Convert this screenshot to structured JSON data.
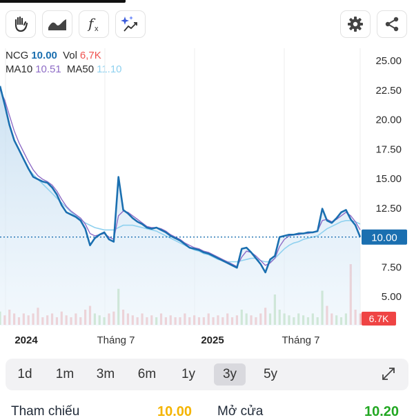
{
  "toolbar": {
    "tools": [
      "hand-draw-icon",
      "chart-style-icon",
      "function-icon",
      "ai-trend-icon"
    ],
    "right_tools": [
      "gear-icon",
      "share-icon"
    ]
  },
  "legend": {
    "symbol": "NCG",
    "price": "10.00",
    "vol_label": "Vol",
    "vol_value": "6,7K",
    "ma10_label": "MA10",
    "ma10_value": "10.51",
    "ma50_label": "MA50",
    "ma50_value": "11.10"
  },
  "colors": {
    "price_line": "#1a6fb0",
    "ma10": "#8e6cc6",
    "ma50": "#8fd1ef",
    "vol_badge": "#ef4444",
    "price_badge": "#1a6fb0",
    "ref_value": "#f4b400",
    "open_value": "#22a722"
  },
  "chart_data": {
    "type": "line",
    "y_ticks": [
      "25.00",
      "22.50",
      "20.00",
      "17.50",
      "15.00",
      "12.50",
      "7.50",
      "5.00"
    ],
    "ylim": [
      2.5,
      26.0
    ],
    "x_labels": [
      "2024",
      "Tháng 7",
      "2025",
      "Tháng 7"
    ],
    "current_price": "10.00",
    "current_volume": "6.7K",
    "series": [
      {
        "name": "NCG",
        "values": [
          22.8,
          21.2,
          19.5,
          18.2,
          17.4,
          16.6,
          15.8,
          15.1,
          14.9,
          14.7,
          14.6,
          14.2,
          13.6,
          12.7,
          12.1,
          11.9,
          11.7,
          11.4,
          10.7,
          9.3,
          9.9,
          10.2,
          10.4,
          9.8,
          9.6,
          15.1,
          12.3,
          12.0,
          11.6,
          11.3,
          11.1,
          10.8,
          10.7,
          10.8,
          10.6,
          10.4,
          10.1,
          9.9,
          9.7,
          9.4,
          9.1,
          9.0,
          8.9,
          8.7,
          8.6,
          8.4,
          8.2,
          8.0,
          7.8,
          7.6,
          7.4,
          9.0,
          9.1,
          8.7,
          8.2,
          7.7,
          7.0,
          8.1,
          8.4,
          10.0,
          10.1,
          10.2,
          10.2,
          10.3,
          10.3,
          10.4,
          10.4,
          10.5,
          12.4,
          11.4,
          11.2,
          11.6,
          12.1,
          12.3,
          11.5,
          11.0,
          10.0
        ]
      },
      {
        "name": "MA10",
        "values": [
          22.5,
          21.6,
          20.3,
          19.0,
          18.0,
          17.2,
          16.4,
          15.7,
          15.2,
          14.9,
          14.7,
          14.4,
          13.9,
          13.2,
          12.6,
          12.2,
          11.9,
          11.6,
          11.1,
          10.3,
          10.1,
          10.2,
          10.3,
          10.0,
          9.8,
          11.8,
          12.2,
          12.1,
          11.8,
          11.5,
          11.2,
          10.9,
          10.8,
          10.8,
          10.7,
          10.5,
          10.2,
          10.0,
          9.8,
          9.5,
          9.3,
          9.1,
          9.0,
          8.8,
          8.7,
          8.5,
          8.3,
          8.1,
          7.9,
          7.7,
          7.5,
          8.3,
          8.8,
          8.7,
          8.4,
          8.0,
          7.6,
          7.8,
          8.2,
          9.2,
          9.8,
          10.1,
          10.2,
          10.2,
          10.3,
          10.3,
          10.4,
          10.5,
          11.4,
          11.5,
          11.3,
          11.5,
          11.8,
          12.1,
          11.8,
          11.3,
          10.6
        ]
      },
      {
        "name": "MA50",
        "values": [
          null,
          null,
          null,
          null,
          null,
          null,
          15.8,
          15.3,
          14.9,
          14.5,
          14.1,
          13.7,
          13.3,
          12.9,
          12.5,
          12.1,
          11.8,
          11.5,
          11.2,
          11.0,
          10.8,
          10.7,
          10.6,
          10.6,
          10.6,
          10.8,
          11.0,
          11.0,
          11.0,
          10.9,
          10.8,
          10.7,
          10.6,
          10.5,
          10.3,
          10.1,
          9.9,
          9.7,
          9.5,
          9.3,
          9.1,
          8.9,
          8.8,
          8.6,
          8.5,
          8.3,
          8.1,
          8.0,
          7.9,
          7.9,
          7.9,
          8.0,
          8.1,
          8.2,
          8.2,
          8.0,
          7.9,
          7.9,
          8.2,
          8.6,
          9.0,
          9.3,
          9.5,
          9.6,
          9.8,
          9.9,
          10.0,
          10.1,
          10.4,
          10.7,
          10.9,
          11.1,
          11.3,
          11.4,
          11.4,
          11.3,
          11.1
        ]
      }
    ],
    "volume": [
      0.35,
      0.25,
      0.4,
      0.3,
      0.2,
      0.3,
      0.25,
      0.3,
      0.45,
      0.2,
      0.25,
      0.3,
      0.2,
      0.35,
      0.25,
      0.2,
      0.3,
      0.2,
      0.4,
      0.5,
      0.3,
      0.25,
      0.2,
      0.3,
      0.35,
      0.95,
      0.4,
      0.3,
      0.25,
      0.2,
      0.3,
      0.2,
      0.25,
      0.2,
      0.3,
      0.2,
      0.25,
      0.2,
      0.2,
      0.3,
      0.2,
      0.25,
      0.2,
      0.2,
      0.3,
      0.2,
      0.25,
      0.2,
      0.3,
      0.2,
      0.25,
      0.4,
      0.3,
      0.25,
      0.2,
      0.3,
      0.45,
      0.3,
      0.8,
      0.4,
      0.3,
      0.25,
      0.2,
      0.3,
      0.25,
      0.2,
      0.3,
      0.2,
      0.9,
      0.5,
      0.3,
      0.25,
      0.2,
      0.3,
      1.6,
      0.4,
      0.3
    ],
    "grid": true
  },
  "periods": {
    "items": [
      "1d",
      "1m",
      "3m",
      "6m",
      "1y",
      "3y",
      "5y"
    ],
    "active": "3y"
  },
  "bottom": {
    "ref_label": "Tham chiếu",
    "ref_value": "10.00",
    "open_label": "Mở cửa",
    "open_value": "10.20"
  }
}
